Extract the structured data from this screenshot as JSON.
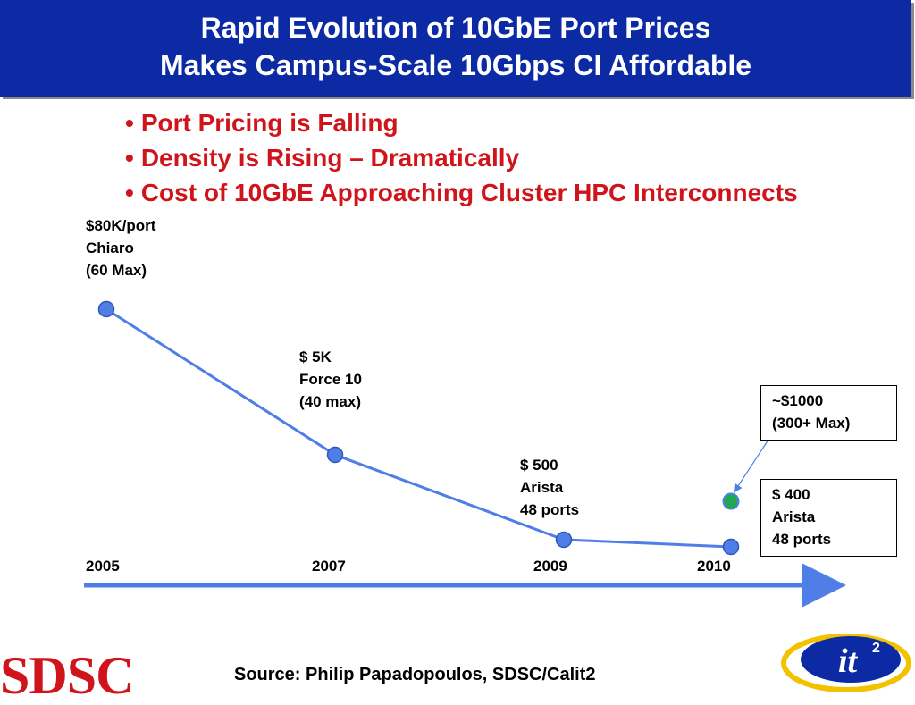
{
  "title": {
    "line1": "Rapid Evolution of 10GbE Port Prices",
    "line2": "Makes Campus-Scale 10Gbps CI Affordable"
  },
  "bullets": [
    "Port Pricing is Falling",
    "Density is Rising – Dramatically",
    "Cost of 10GbE Approaching Cluster HPC Interconnects"
  ],
  "bullet_glyph": "•",
  "chart_data": {
    "type": "line",
    "x": [
      "2005",
      "2007",
      "2009",
      "2010"
    ],
    "series": [
      {
        "values": [
          80000,
          5000,
          500,
          400
        ],
        "color": "#4f7fe6",
        "labels": [
          [
            "$80K/port",
            "Chiaro",
            "(60 Max)"
          ],
          [
            "$ 5K",
            "Force 10",
            "(40 max)"
          ],
          [
            "$ 500",
            "Arista",
            "48 ports"
          ],
          [
            "$ 400",
            "Arista",
            "48 ports"
          ]
        ]
      }
    ],
    "extra_point": {
      "x": "2010",
      "value": 1000,
      "color": "#21a84a",
      "label": [
        "~$1000",
        "(300+ Max)"
      ]
    },
    "x_axis_arrow_color": "#4f7fe6"
  },
  "source": "Source:  Philip Papadopoulos, SDSC/Calit2",
  "logos": {
    "left": "SDSC",
    "right": "it"
  }
}
